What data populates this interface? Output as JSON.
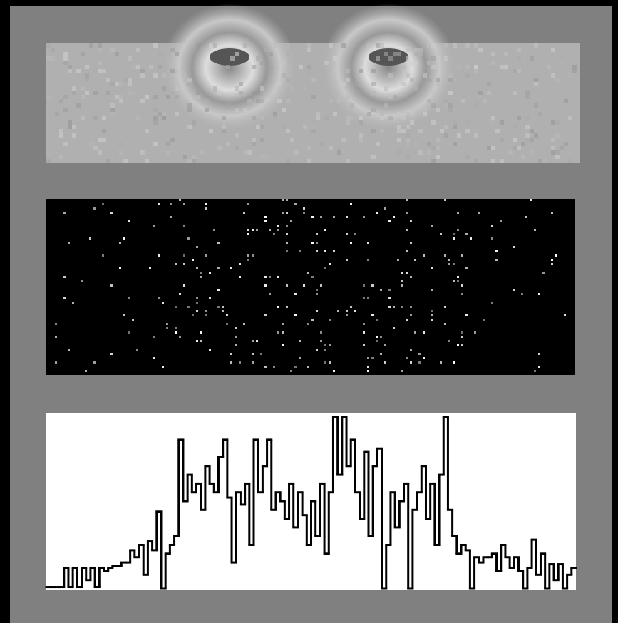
{
  "chart_data": {
    "type": "line",
    "step": true,
    "color": "#000000",
    "values": [
      1,
      1,
      1,
      1,
      12,
      1,
      12,
      1,
      12,
      5,
      12,
      1,
      12,
      10,
      12,
      13,
      13,
      15,
      15,
      22,
      18,
      25,
      8,
      27,
      22,
      44,
      0,
      20,
      25,
      30,
      85,
      50,
      65,
      55,
      60,
      45,
      70,
      60,
      55,
      75,
      85,
      52,
      15,
      55,
      48,
      60,
      25,
      85,
      55,
      70,
      85,
      45,
      55,
      50,
      40,
      60,
      35,
      55,
      42,
      25,
      50,
      30,
      60,
      20,
      55,
      98,
      65,
      98,
      70,
      85,
      55,
      40,
      78,
      30,
      70,
      80,
      0,
      25,
      55,
      35,
      50,
      60,
      0,
      45,
      55,
      70,
      40,
      60,
      25,
      65,
      98,
      45,
      30,
      20,
      25,
      22,
      0,
      18,
      15,
      18,
      18,
      20,
      10,
      25,
      18,
      12,
      18,
      10,
      0,
      12,
      28,
      8,
      20,
      0,
      14,
      5,
      14,
      0,
      8,
      12
    ],
    "ylim": [
      0,
      100
    ]
  }
}
